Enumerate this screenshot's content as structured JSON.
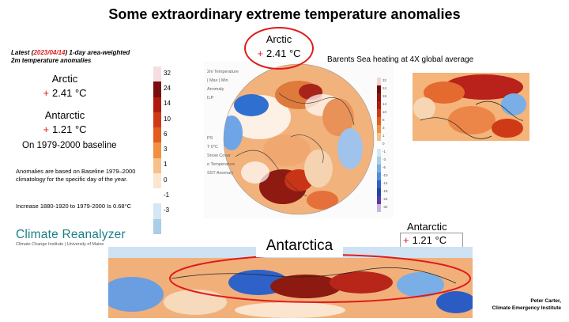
{
  "title": "Some extraordinary extreme temperature anomalies",
  "latest": {
    "prefix": "Latest (",
    "date": "2023/04/14",
    "suffix": ") 1-day area-weighted",
    "line2": "2m temperature anomalies"
  },
  "left_stats": {
    "arctic_label": "Arctic",
    "arctic_value": "2.41 °C",
    "antarctic_label": "Antarctic",
    "antarctic_value": "1.21 °C",
    "plus_sign": "+"
  },
  "baseline_note": "On 1979-2000 baseline",
  "climatology_note": "Anomalies are based on Baseline 1979–2000 climatology for the specific day of the year.",
  "increase_note": "Increase 1880-1920 to 1979-2000 Is 0.68°C",
  "logo": {
    "name": "Climate Reanalyzer",
    "subtitle": "Climate Change Institute | University of Maine"
  },
  "legend_left": [
    "32",
    "24",
    "14",
    "10",
    "6",
    "3",
    "1",
    "0",
    "-1",
    "-3"
  ],
  "legend_colors": [
    "#f7dede",
    "#7a0d0d",
    "#b01b10",
    "#cf3a16",
    "#e35d1f",
    "#f09040",
    "#f6c08a",
    "#fbe6cf",
    "#ffffff",
    "#d5e6f4",
    "#aacde8"
  ],
  "map_panel_labels": [
    "2m Temperature",
    "| Max | Min",
    "Anomaly",
    "ILP",
    "PS",
    "T 0°C",
    "Snow Cover",
    "e Temperature",
    "SST Anomaly"
  ],
  "right_scale": [
    "32",
    "24",
    "18",
    "14",
    "10",
    "6",
    "3",
    "1",
    "0",
    "-1",
    "-3",
    "-6",
    "-10",
    "-14",
    "-18",
    "-24",
    "-32"
  ],
  "arctic_callout": {
    "label": "Arctic",
    "value": "2.41 °C",
    "plus_sign": "+"
  },
  "barents_caption": "Barents Sea heating at 4X global average",
  "antarctic_right": {
    "label": "Antarctic",
    "value": "1.21 °C",
    "plus_sign": "+"
  },
  "antarctica_title": "Antarctica",
  "credit": {
    "line1": "Peter Carter,",
    "line2": "Climate Emergency Institute"
  },
  "colors": {
    "accent_red": "#e01b1b",
    "logo_teal": "#1a7f86"
  }
}
